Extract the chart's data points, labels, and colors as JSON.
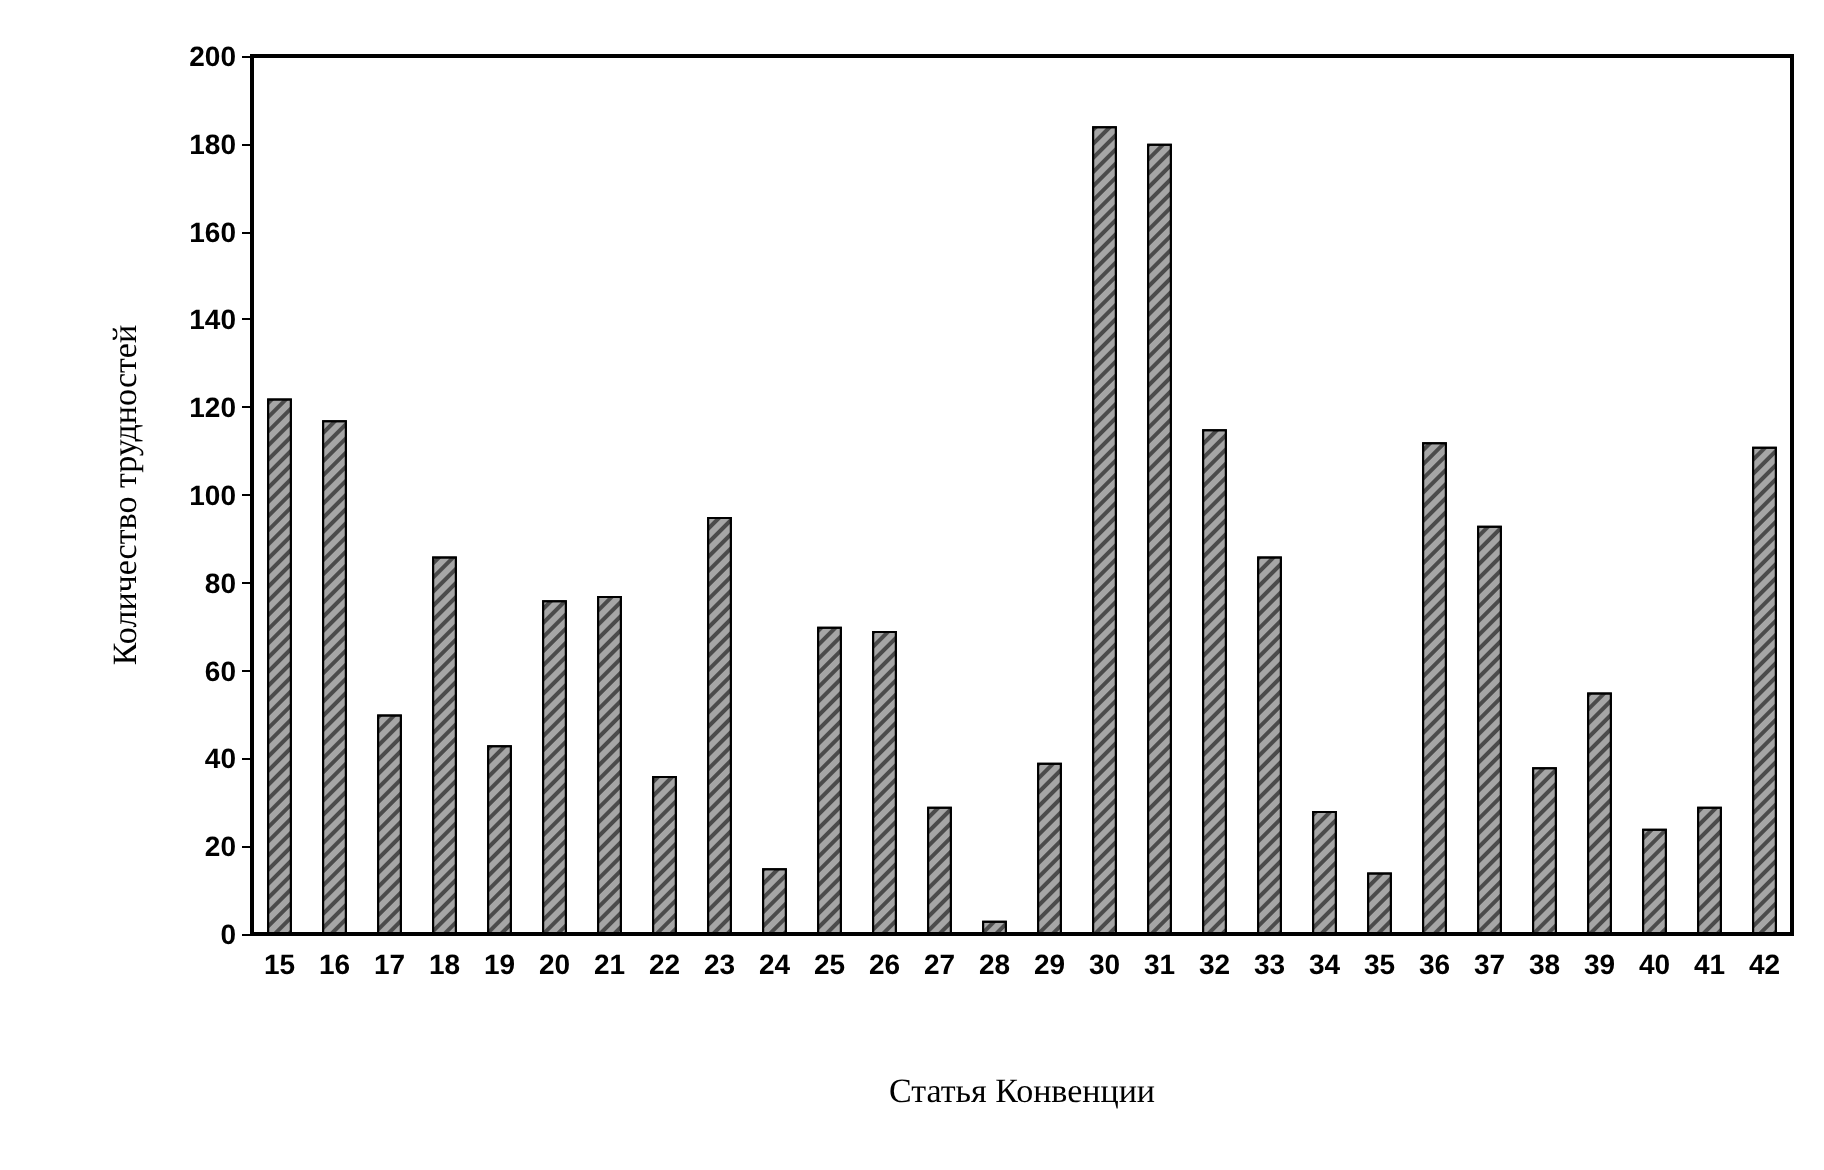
{
  "chart_data": {
    "type": "bar",
    "xlabel": "Статья Конвенции",
    "ylabel": "Количество трудностей",
    "categories": [
      "15",
      "16",
      "17",
      "18",
      "19",
      "20",
      "21",
      "22",
      "23",
      "24",
      "25",
      "26",
      "27",
      "28",
      "29",
      "30",
      "31",
      "32",
      "33",
      "34",
      "35",
      "36",
      "37",
      "38",
      "39",
      "40",
      "41",
      "42"
    ],
    "values": [
      122,
      117,
      50,
      86,
      43,
      76,
      77,
      36,
      95,
      15,
      70,
      69,
      29,
      3,
      39,
      184,
      180,
      115,
      86,
      28,
      14,
      112,
      93,
      38,
      55,
      24,
      29,
      111
    ],
    "color": "#a6a6a6",
    "ylim": [
      0,
      200
    ],
    "yticks": [
      0,
      20,
      40,
      60,
      80,
      100,
      120,
      140,
      160,
      180,
      200
    ],
    "grid": false
  }
}
